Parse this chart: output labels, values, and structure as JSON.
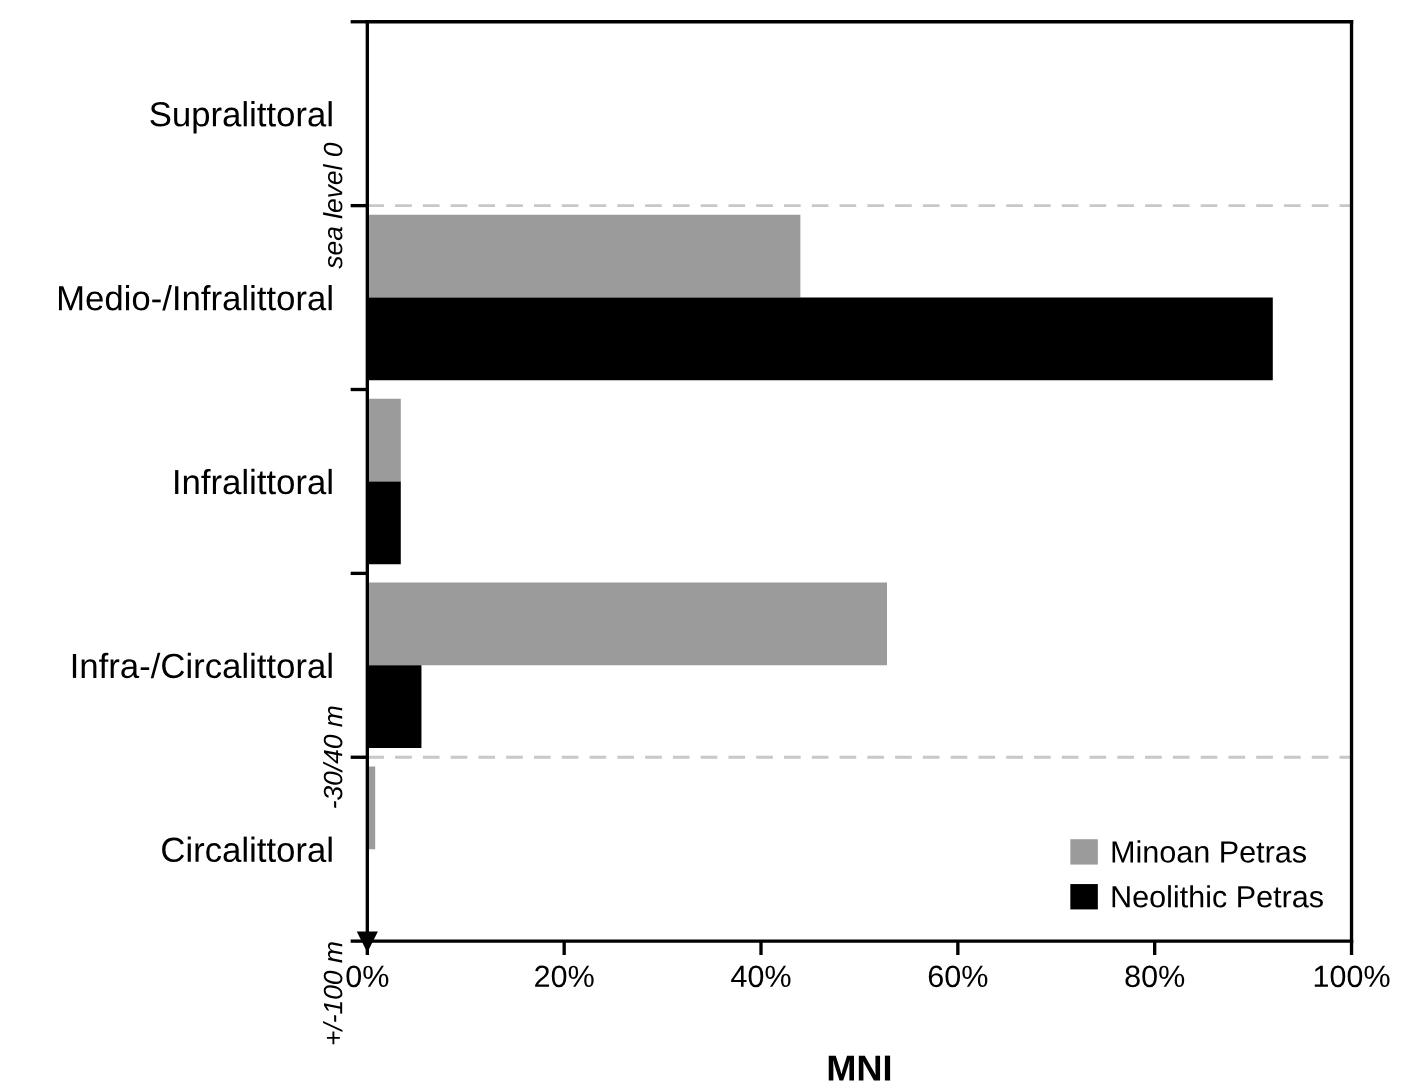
{
  "chart_data": {
    "type": "bar",
    "orientation": "horizontal",
    "xlabel": "MNI",
    "categories": [
      "Supralittoral",
      "Medio-/Infralittoral",
      "Infralittoral",
      "Infra-/Circalittoral",
      "Circalittoral"
    ],
    "series": [
      {
        "name": "Minoan Petras",
        "color": "#9b9b9b",
        "values": [
          0,
          44,
          3.4,
          52.8,
          0.8
        ]
      },
      {
        "name": "Neolithic Petras",
        "color": "#000000",
        "values": [
          0,
          92,
          3.4,
          5.5,
          0
        ]
      }
    ],
    "xlim": [
      0,
      100
    ],
    "xticks": [
      {
        "value": 0,
        "label": "0%"
      },
      {
        "value": 20,
        "label": "20%"
      },
      {
        "value": 40,
        "label": "40%"
      },
      {
        "value": 60,
        "label": "60%"
      },
      {
        "value": 80,
        "label": "80%"
      },
      {
        "value": 100,
        "label": "100%"
      }
    ],
    "annotations": [
      "sea level 0",
      "-30/40 m",
      "+/-100 m"
    ],
    "legend": "bottom right",
    "grid": false
  }
}
